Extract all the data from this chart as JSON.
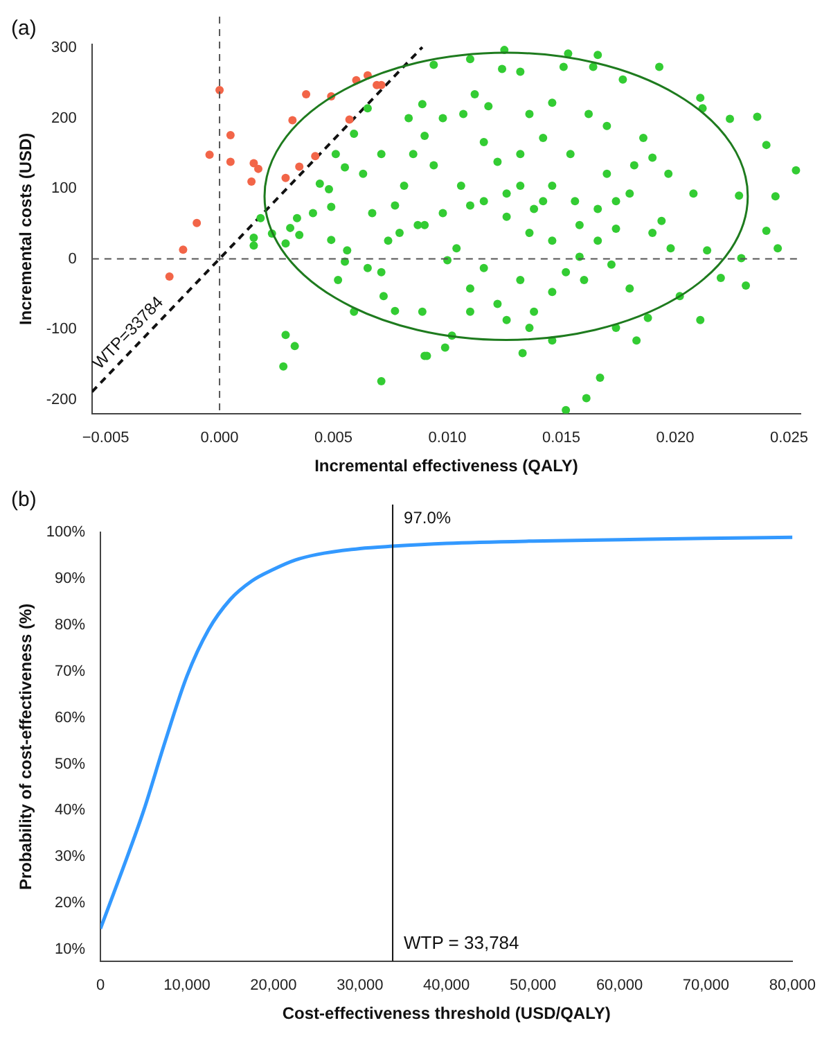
{
  "chart_data": [
    {
      "type": "scatter",
      "title": "(a)",
      "xlabel": "Incremental effectiveness (QALY)",
      "ylabel": "Incremental costs (USD)",
      "marker": "circle",
      "xlim": [
        -0.0056,
        0.0255
      ],
      "ylim": [
        -220,
        305
      ],
      "xticks": [
        {
          "value": -0.005,
          "label": "−0.005"
        },
        {
          "value": 0,
          "label": "0.000"
        },
        {
          "value": 0.005,
          "label": "0.005"
        },
        {
          "value": 0.01,
          "label": "0.010"
        },
        {
          "value": 0.015,
          "label": "0.015"
        },
        {
          "value": 0.02,
          "label": "0.020"
        },
        {
          "value": 0.025,
          "label": "0.025"
        }
      ],
      "yticks": [
        -200,
        -100,
        0,
        100,
        200,
        300
      ],
      "ref_lines": [
        {
          "axis": "x",
          "value": 0,
          "color": "#555555",
          "line_style": "dashed"
        },
        {
          "axis": "y",
          "value": 0,
          "color": "#555555",
          "line_style": "dashed"
        }
      ],
      "annotations": [
        {
          "text": "WTP=33784",
          "x": -0.0036,
          "y": -118
        }
      ],
      "series": [
        {
          "type": "scatter",
          "color": "#33cc33",
          "x": [
            0.0018,
            0.0015,
            0.0015,
            0.0023,
            0.0029,
            0.0031,
            0.0034,
            0.0035,
            0.0029,
            0.0033,
            0.0028,
            0.0041,
            0.0044,
            0.0049,
            0.0049,
            0.0048,
            0.0051,
            0.0055,
            0.0059,
            0.0065,
            0.0071,
            0.0059,
            0.0056,
            0.0065,
            0.0071,
            0.0072,
            0.0077,
            0.0083,
            0.0089,
            0.009,
            0.0081,
            0.0077,
            0.0067,
            0.0063,
            0.0071,
            0.0079,
            0.0089,
            0.009,
            0.0052,
            0.0055,
            0.0074,
            0.0087,
            0.0085,
            0.0125,
            0.0153,
            0.0166,
            0.0094,
            0.011,
            0.0124,
            0.0132,
            0.0151,
            0.0164,
            0.0193,
            0.0177,
            0.0211,
            0.0212,
            0.0224,
            0.0236,
            0.024,
            0.0253,
            0.0244,
            0.0228,
            0.024,
            0.0245,
            0.0231,
            0.0229,
            0.022,
            0.0211,
            0.0183,
            0.0167,
            0.0161,
            0.0152,
            0.0133,
            0.0146,
            0.0091,
            0.0099,
            0.0102,
            0.0136,
            0.0126,
            0.011,
            0.0174,
            0.0188,
            0.0202,
            0.0214,
            0.0198,
            0.0194,
            0.0208,
            0.0197,
            0.019,
            0.0186,
            0.017,
            0.0162,
            0.0146,
            0.0136,
            0.0112,
            0.0107,
            0.0118,
            0.0098,
            0.0142,
            0.0154,
            0.017,
            0.018,
            0.0166,
            0.0158,
            0.0146,
            0.0136,
            0.0126,
            0.0116,
            0.0106,
            0.0094,
            0.009,
            0.0104,
            0.0116,
            0.0132,
            0.0146,
            0.016,
            0.0172,
            0.018,
            0.0158,
            0.0142,
            0.0132,
            0.0122,
            0.0116,
            0.0132,
            0.0146,
            0.0156,
            0.0174,
            0.0182,
            0.0138,
            0.0126,
            0.011,
            0.0098,
            0.01,
            0.011,
            0.0122,
            0.0138,
            0.0152,
            0.0166,
            0.0174,
            0.019
          ],
          "values": [
            58,
            30,
            19,
            36,
            22,
            44,
            58,
            34,
            -108,
            -124,
            -153,
            65,
            107,
            27,
            74,
            99,
            149,
            130,
            178,
            214,
            -174,
            -75,
            12,
            -13,
            -19,
            -53,
            -74,
            200,
            220,
            175,
            104,
            76,
            65,
            121,
            149,
            37,
            -75,
            -138,
            -30,
            -4,
            26,
            48,
            149,
            297,
            292,
            290,
            276,
            284,
            270,
            266,
            273,
            273,
            273,
            255,
            229,
            214,
            199,
            202,
            162,
            126,
            89,
            90,
            40,
            15,
            -38,
            1,
            -27,
            -87,
            -116,
            -169,
            -198,
            -215,
            -134,
            -116,
            -138,
            -126,
            -109,
            -98,
            -87,
            -75,
            -98,
            -84,
            -53,
            12,
            15,
            54,
            93,
            121,
            144,
            172,
            189,
            206,
            222,
            206,
            234,
            206,
            217,
            200,
            172,
            149,
            121,
            93,
            71,
            48,
            26,
            37,
            60,
            82,
            104,
            133,
            48,
            15,
            -13,
            -30,
            -47,
            -30,
            -8,
            -42,
            3,
            82,
            104,
            138,
            166,
            149,
            104,
            82,
            82,
            133,
            71,
            93,
            76,
            65,
            -2,
            -42,
            -64,
            -75,
            -19,
            26,
            43,
            37
          ]
        },
        {
          "type": "scatter",
          "color": "#f26548",
          "x": [
            0,
            -0.00044,
            0.00048,
            0.00048,
            0.0015,
            0.0017,
            0.0014,
            0.0029,
            0.0035,
            0.0032,
            0.0038,
            0.0049,
            0.0057,
            0.0042,
            0.006,
            0.0065,
            0.0069,
            0.0071,
            -0.001,
            -0.0016,
            -0.0022
          ],
          "values": [
            240,
            148,
            176,
            138,
            136,
            128,
            110,
            115,
            131,
            197,
            234,
            231,
            198,
            146,
            254,
            261,
            247,
            247,
            51,
            13,
            -25
          ]
        },
        {
          "type": "line",
          "color": "#111111",
          "marker": "none",
          "line_style": "dashed",
          "x": [
            -0.0056,
            0.0089
          ],
          "values": [
            -189,
            301
          ]
        }
      ]
    },
    {
      "type": "line",
      "title": "(b)",
      "xlabel": "Cost-effectiveness threshold (USD/QALY)",
      "ylabel": "Probability of cost-effectiveness (%)",
      "marker": "none",
      "line_style": "solid",
      "xlim": [
        0,
        80000
      ],
      "ylim": [
        7.5,
        100
      ],
      "xticks": [
        0,
        {
          "value": 10000,
          "label": "10,000"
        },
        {
          "value": 20000,
          "label": "20,000"
        },
        {
          "value": 30000,
          "label": "30,000"
        },
        {
          "value": 40000,
          "label": "40,000"
        },
        {
          "value": 50000,
          "label": "50,000"
        },
        {
          "value": 60000,
          "label": "60,000"
        },
        {
          "value": 70000,
          "label": "70,000"
        },
        {
          "value": 80000,
          "label": "80,000"
        }
      ],
      "yticks": [
        {
          "value": 10,
          "label": "10%"
        },
        {
          "value": 20,
          "label": "20%"
        },
        {
          "value": 30,
          "label": "30%"
        },
        {
          "value": 40,
          "label": "40%"
        },
        {
          "value": 50,
          "label": "50%"
        },
        {
          "value": 60,
          "label": "60%"
        },
        {
          "value": 70,
          "label": "70%"
        },
        {
          "value": 80,
          "label": "80%"
        },
        {
          "value": 90,
          "label": "90%"
        },
        {
          "value": 100,
          "label": "100%"
        }
      ],
      "ref_lines": [
        {
          "axis": "x",
          "value": 33784,
          "label": "WTP = 33,784",
          "color": "#111111",
          "line_style": "solid"
        }
      ],
      "annotations": [
        {
          "text": "97.0%",
          "x": 33784,
          "y": 97
        }
      ],
      "x": [
        0,
        2500,
        5000,
        7500,
        10000,
        12500,
        15000,
        17500,
        20000,
        22500,
        25000,
        30000,
        33784,
        40000,
        50000,
        60000,
        70000,
        80000
      ],
      "series": [
        {
          "color": "#3399ff",
          "values": [
            14.5,
            27,
            40,
            55,
            69,
            79,
            85.5,
            89.5,
            92,
            94,
            95.2,
            96.5,
            97,
            97.6,
            98.1,
            98.4,
            98.7,
            98.9
          ]
        }
      ]
    }
  ]
}
